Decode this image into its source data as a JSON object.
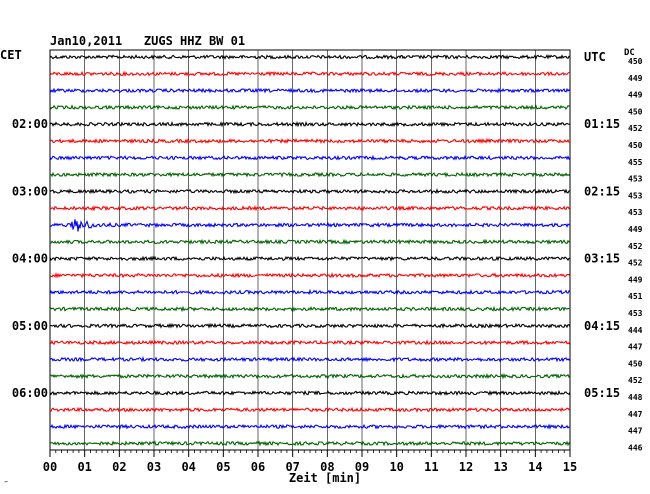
{
  "header": {
    "title": "Jan10,2011   ZUGS HHZ BW 01"
  },
  "left_zone_label": "CET",
  "right_zone_label": "UTC",
  "dc_header": "DC",
  "corner_mark": "‴",
  "chart_data": {
    "type": "line",
    "title": "Jan10,2011   ZUGS HHZ BW 01",
    "xlabel": "Zeit [min]",
    "ylabel": "",
    "xlim": [
      0,
      15
    ],
    "x_ticks": [
      "00",
      "01",
      "02",
      "03",
      "04",
      "05",
      "06",
      "07",
      "08",
      "09",
      "10",
      "11",
      "12",
      "13",
      "14",
      "15"
    ],
    "grid": true,
    "trace_colors": [
      "#000000",
      "#ff0000",
      "#0000ff",
      "#006400"
    ],
    "left_time_labels": [
      {
        "trace": 4,
        "label": "02:00"
      },
      {
        "trace": 8,
        "label": "03:00"
      },
      {
        "trace": 12,
        "label": "04:00"
      },
      {
        "trace": 16,
        "label": "05:00"
      },
      {
        "trace": 20,
        "label": "06:00"
      }
    ],
    "right_time_labels": [
      {
        "trace": 0,
        "label": "UTC"
      },
      {
        "trace": 4,
        "label": "01:15"
      },
      {
        "trace": 8,
        "label": "02:15"
      },
      {
        "trace": 12,
        "label": "03:15"
      },
      {
        "trace": 16,
        "label": "04:15"
      },
      {
        "trace": 20,
        "label": "05:15"
      }
    ],
    "dc_values": [
      "450",
      "449",
      "449",
      "450",
      "452",
      "450",
      "455",
      "453",
      "453",
      "453",
      "449",
      "452",
      "452",
      "449",
      "451",
      "453",
      "444",
      "447",
      "450",
      "452",
      "448",
      "447",
      "447",
      "446"
    ],
    "events": [
      {
        "trace": 10,
        "minute": 0.8
      }
    ]
  }
}
